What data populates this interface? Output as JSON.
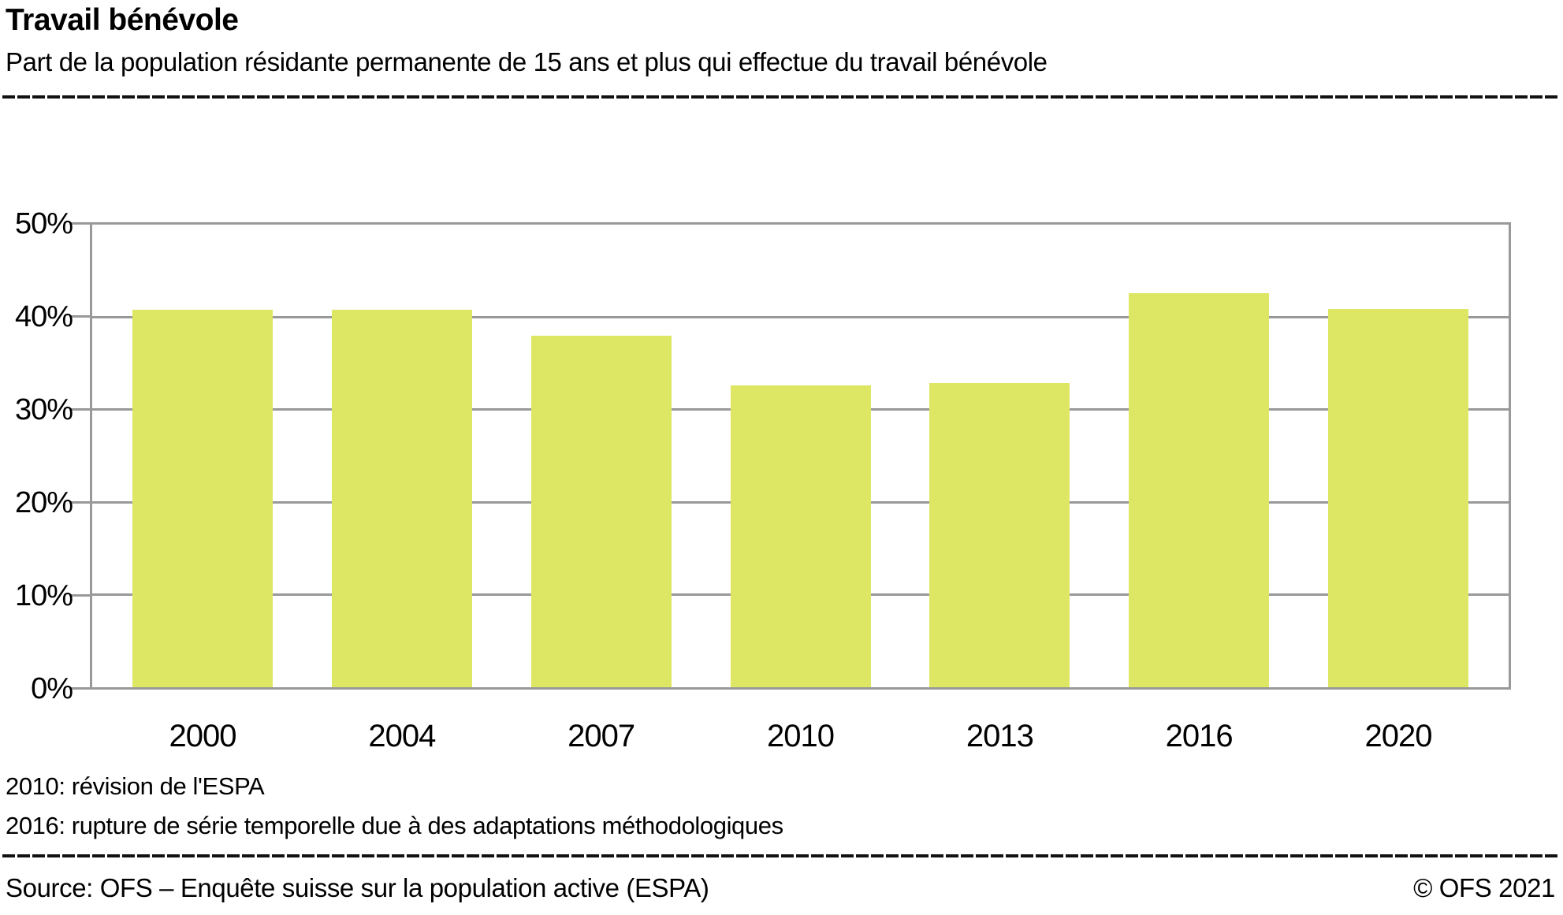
{
  "chart_data": {
    "type": "bar",
    "title": "Travail bénévole",
    "subtitle": "Part de la population résidante permanente de 15 ans et plus qui effectue du travail bénévole",
    "categories": [
      "2000",
      "2004",
      "2007",
      "2010",
      "2013",
      "2016",
      "2020"
    ],
    "values": [
      40.8,
      40.8,
      38.0,
      32.6,
      32.9,
      42.6,
      40.9
    ],
    "xlabel": "",
    "ylabel": "",
    "ylim": [
      0,
      50
    ],
    "yticks": [
      0,
      10,
      20,
      30,
      40,
      50
    ],
    "ytick_labels": [
      "0%",
      "10%",
      "20%",
      "30%",
      "40%",
      "50%"
    ],
    "grid": "horizontal",
    "legend": "none",
    "annotations": [
      "2010: révision de l'ESPA",
      "2016: rupture de série temporelle due à des adaptations méthodologiques"
    ],
    "bar_color": "#dde764",
    "grid_color": "#999999",
    "text_color": "#000000"
  },
  "footer": {
    "source": "Source: OFS – Enquête suisse sur la population active (ESPA)",
    "copyright": "© OFS 2021"
  }
}
